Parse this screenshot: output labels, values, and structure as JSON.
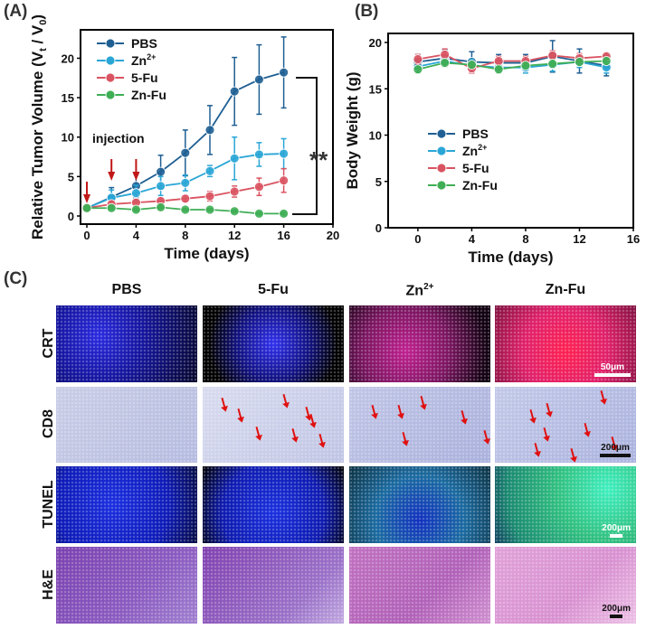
{
  "panels": {
    "a": "(A)",
    "b": "(B)",
    "c": "(C)"
  },
  "chart_data": [
    {
      "type": "line",
      "xlabel": "Time (days)",
      "ylabel": "Relative Tumor Volume (Vt / V0)",
      "xlim": [
        0,
        20
      ],
      "ylim": [
        0,
        22
      ],
      "xticks": [
        0,
        4,
        8,
        12,
        16,
        20
      ],
      "yticks": [
        0,
        5,
        10,
        15,
        20
      ],
      "x": [
        0,
        2,
        4,
        6,
        8,
        10,
        12,
        14,
        16
      ],
      "legend": "top-left",
      "series": [
        {
          "name": "PBS",
          "color": "#1f5f93",
          "values": [
            1,
            2.4,
            3.8,
            5.6,
            8.0,
            10.9,
            15.8,
            17.3,
            18.2
          ],
          "error": [
            0.2,
            1.2,
            1.5,
            2.1,
            2.9,
            3.1,
            4.3,
            4.4,
            4.5
          ]
        },
        {
          "name": "Zn2+",
          "color": "#2aa6d6",
          "values": [
            1,
            2.3,
            2.9,
            3.8,
            4.2,
            5.7,
            7.3,
            7.8,
            7.9
          ],
          "error": [
            0.2,
            1.0,
            1.0,
            1.2,
            1.0,
            0.7,
            2.7,
            1.5,
            1.9
          ]
        },
        {
          "name": "5-Fu",
          "color": "#d95361",
          "values": [
            1,
            1.5,
            1.7,
            1.9,
            2.2,
            2.5,
            3.1,
            3.7,
            4.5
          ],
          "error": [
            0.2,
            0.3,
            0.4,
            0.4,
            0.4,
            0.6,
            0.7,
            1.1,
            1.5
          ]
        },
        {
          "name": "Zn-Fu",
          "color": "#3fae55",
          "values": [
            1,
            1.0,
            0.8,
            1.1,
            0.8,
            0.8,
            0.6,
            0.3,
            0.3
          ],
          "error": [
            0.2,
            0.2,
            0.2,
            0.2,
            0.15,
            0.15,
            0.15,
            0.15,
            0.15
          ]
        }
      ],
      "annotations": {
        "injection": "injection",
        "injection_days": [
          0,
          2,
          4
        ],
        "significance": "**"
      }
    },
    {
      "type": "line",
      "xlabel": "Time (days)",
      "ylabel": "Body Weight (g)",
      "xlim": [
        -1,
        16
      ],
      "ylim": [
        0,
        20
      ],
      "xticks": [
        0,
        4,
        8,
        12,
        16
      ],
      "yticks": [
        0,
        5,
        10,
        15,
        20
      ],
      "x": [
        0,
        2,
        4,
        6,
        8,
        10,
        12,
        14
      ],
      "legend": "center-left",
      "series": [
        {
          "name": "PBS",
          "color": "#1f5f93",
          "values": [
            17.9,
            18.3,
            17.9,
            17.8,
            17.8,
            18.5,
            18.0,
            17.5
          ],
          "error": [
            0.8,
            0.9,
            1.1,
            0.9,
            0.9,
            1.7,
            1.3,
            1.1
          ]
        },
        {
          "name": "Zn2+",
          "color": "#2aa6d6",
          "values": [
            17.4,
            18.0,
            17.5,
            17.3,
            17.3,
            17.6,
            17.9,
            17.3
          ],
          "error": [
            0.6,
            0.6,
            0.7,
            0.6,
            0.6,
            0.7,
            0.6,
            0.6
          ]
        },
        {
          "name": "5-Fu",
          "color": "#d95361",
          "values": [
            18.2,
            18.7,
            17.2,
            18.0,
            18.0,
            18.6,
            18.3,
            18.5
          ],
          "error": [
            0.5,
            0.6,
            0.5,
            0.5,
            0.5,
            0.5,
            0.5,
            0.4
          ]
        },
        {
          "name": "Zn-Fu",
          "color": "#3fae55",
          "values": [
            17.1,
            17.8,
            17.6,
            17.1,
            17.5,
            17.7,
            17.9,
            18.0
          ],
          "error": [
            0.4,
            0.4,
            0.4,
            0.4,
            0.4,
            0.4,
            0.4,
            0.4
          ]
        }
      ]
    }
  ],
  "micrographs": {
    "columns": [
      "PBS",
      "5-Fu",
      "Zn2+",
      "Zn-Fu"
    ],
    "rows": [
      "CRT",
      "CD8",
      "TUNEL",
      "H&E"
    ],
    "scale_bars": {
      "CRT": "50μm",
      "CD8": "200μm",
      "TUNEL": "200μm",
      "H&E": "200μm"
    }
  }
}
